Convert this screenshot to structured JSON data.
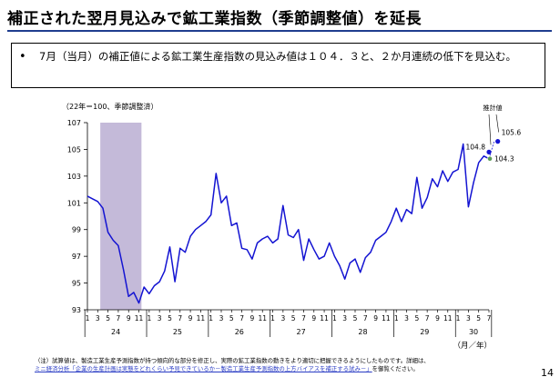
{
  "title": "補正された翌月見込みで鉱工業指数（季節調整値）を延長",
  "bullet": "7月（当月）の補正値による鉱工業生産指数の見込み値は１０４．３と、２か月連続の低下を見込む。",
  "footnote": {
    "line1": "（注）試算値は、製造工業生産予測指数が持つ傾向的な部分を修正し、実際の鉱工業指数の動きをより適切に把握できるようにしたものです。詳細は、",
    "link": "ミニ経済分析「企業の生産計画は実態をどれくらい予見できているか－製造工業生産予測指数の上方バイアスを補正する試み－」",
    "line2_suffix": "を御覧ください。"
  },
  "page_number": "14",
  "colors": {
    "line": "#1414d2",
    "shade": "#c4bad9",
    "title_rule": "#1f3d8f",
    "forecast_grey": "#5a9a55"
  },
  "chart_data": {
    "type": "line",
    "unit_note": "（22年＝100、季節調整済）",
    "xlabel": "（月／年）",
    "ylim": [
      93,
      107
    ],
    "yticks": [
      93,
      95,
      97,
      99,
      101,
      103,
      105,
      107
    ],
    "month_ticks": [
      "1",
      "3",
      "5",
      "7",
      "9",
      "11",
      "1",
      "3",
      "5",
      "7",
      "9",
      "11",
      "1",
      "3",
      "5",
      "7",
      "9",
      "11",
      "1",
      "3",
      "5",
      "7",
      "9",
      "11",
      "1",
      "3",
      "5",
      "7",
      "9",
      "11",
      "1",
      "3",
      "5",
      "7",
      "9",
      "11",
      "1",
      "3",
      "5",
      "7"
    ],
    "years": [
      {
        "label": "24",
        "start": 0,
        "end": 12
      },
      {
        "label": "25",
        "start": 12,
        "end": 24
      },
      {
        "label": "26",
        "start": 24,
        "end": 36
      },
      {
        "label": "27",
        "start": 36,
        "end": 48
      },
      {
        "label": "28",
        "start": 48,
        "end": 60
      },
      {
        "label": "29",
        "start": 60,
        "end": 72
      },
      {
        "label": "30",
        "start": 72,
        "end": 79
      }
    ],
    "shaded": {
      "start": 2.5,
      "end": 10.5
    },
    "series": [
      {
        "values": [
          101.5,
          101.3,
          101.1,
          100.6,
          98.8,
          98.2,
          97.8,
          96.0,
          94.0,
          94.3,
          93.5,
          94.7,
          94.2,
          94.8,
          95.1,
          95.9,
          97.7,
          95.1,
          97.6,
          97.3,
          98.5,
          99.0,
          99.3,
          99.6,
          100.1,
          103.2,
          101.0,
          101.5,
          99.3,
          99.5,
          97.6,
          97.5,
          96.8,
          98.0,
          98.3,
          98.5,
          98.0,
          98.3,
          100.8,
          98.6,
          98.4,
          99.0,
          96.7,
          98.3,
          97.5,
          96.8,
          97.0,
          98.0,
          97.0,
          96.3,
          95.3,
          96.5,
          96.8,
          95.8,
          96.9,
          97.3,
          98.2,
          98.5,
          98.8,
          99.6,
          100.6,
          99.6,
          100.5,
          100.2,
          102.9,
          100.6,
          101.4,
          102.8,
          102.2,
          103.4,
          102.6,
          103.3,
          103.5,
          105.4,
          100.7,
          102.5,
          104.0,
          104.5,
          104.3
        ]
      }
    ],
    "points": [
      {
        "label": "105.6",
        "x": 79,
        "y": 105.6
      },
      {
        "label": "104.8",
        "x": 78,
        "y": 104.8
      },
      {
        "label": "104.3",
        "x": 78,
        "y": 104.3
      }
    ],
    "annotation": "推計値"
  }
}
